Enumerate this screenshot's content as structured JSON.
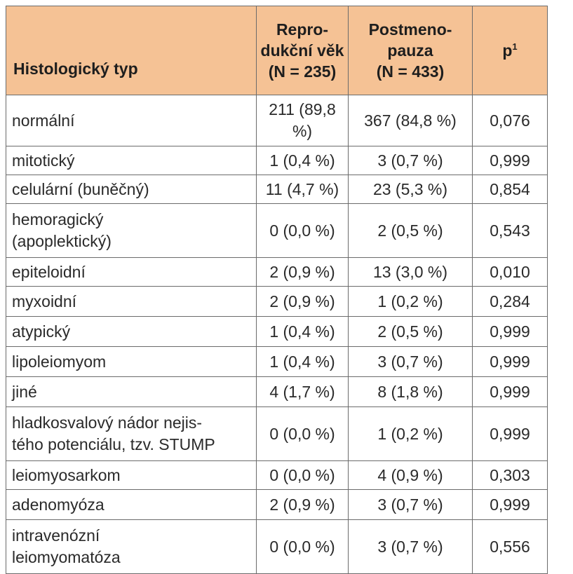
{
  "table": {
    "headers": {
      "type": "Histologický typ",
      "reproductive_line1": "Repro-",
      "reproductive_line2": "dukční věk",
      "reproductive_line3": "(N = 235)",
      "postmeno_line1": "Postmeno-",
      "postmeno_line2": "pauza",
      "postmeno_line3": "(N = 433)",
      "p_label": "p",
      "p_superscript": "1"
    },
    "rows": [
      {
        "name": "normální",
        "reproductive": "211 (89,8 %)",
        "postmeno": "367 (84,8 %)",
        "p": "0,076"
      },
      {
        "name": "mitotický",
        "reproductive": "1 (0,4 %)",
        "postmeno": "3 (0,7 %)",
        "p": "0,999"
      },
      {
        "name": "celulární (buněčný)",
        "reproductive": "11 (4,7 %)",
        "postmeno": "23 (5,3 %)",
        "p": "0,854"
      },
      {
        "name_line1": "hemoragický",
        "name_line2": "(apoplektický)",
        "reproductive": "0 (0,0 %)",
        "postmeno": "2 (0,5 %)",
        "p": "0,543"
      },
      {
        "name": "epiteloidní",
        "reproductive": "2 (0,9 %)",
        "postmeno": "13 (3,0 %)",
        "p": "0,010"
      },
      {
        "name": "myxoidní",
        "reproductive": "2 (0,9 %)",
        "postmeno": "1 (0,2 %)",
        "p": "0,284"
      },
      {
        "name": "atypický",
        "reproductive": "1 (0,4 %)",
        "postmeno": "2 (0,5 %)",
        "p": "0,999"
      },
      {
        "name": "lipoleiomyom",
        "reproductive": "1 (0,4 %)",
        "postmeno": "3 (0,7 %)",
        "p": "0,999"
      },
      {
        "name": "jiné",
        "reproductive": "4 (1,7 %)",
        "postmeno": "8 (1,8 %)",
        "p": "0,999"
      },
      {
        "name_line1": "hladkosvalový nádor nejis-",
        "name_line2": "tého potenciálu, tzv. STUMP",
        "reproductive": "0 (0,0 %)",
        "postmeno": "1 (0,2 %)",
        "p": "0,999"
      },
      {
        "name": "leiomyosarkom",
        "reproductive": "0 (0,0 %)",
        "postmeno": "4 (0,9 %)",
        "p": "0,303"
      },
      {
        "name": "adenomyóza",
        "reproductive": "2 (0,9 %)",
        "postmeno": "3 (0,7 %)",
        "p": "0,999"
      },
      {
        "name_line1": "intravenózní",
        "name_line2": "leiomyomatóza",
        "reproductive": "0 (0,0 %)",
        "postmeno": "3 (0,7 %)",
        "p": "0,556"
      }
    ]
  },
  "colors": {
    "header_background": "#f5c295",
    "border": "#6b6b6b",
    "text": "#2a2a2a"
  }
}
